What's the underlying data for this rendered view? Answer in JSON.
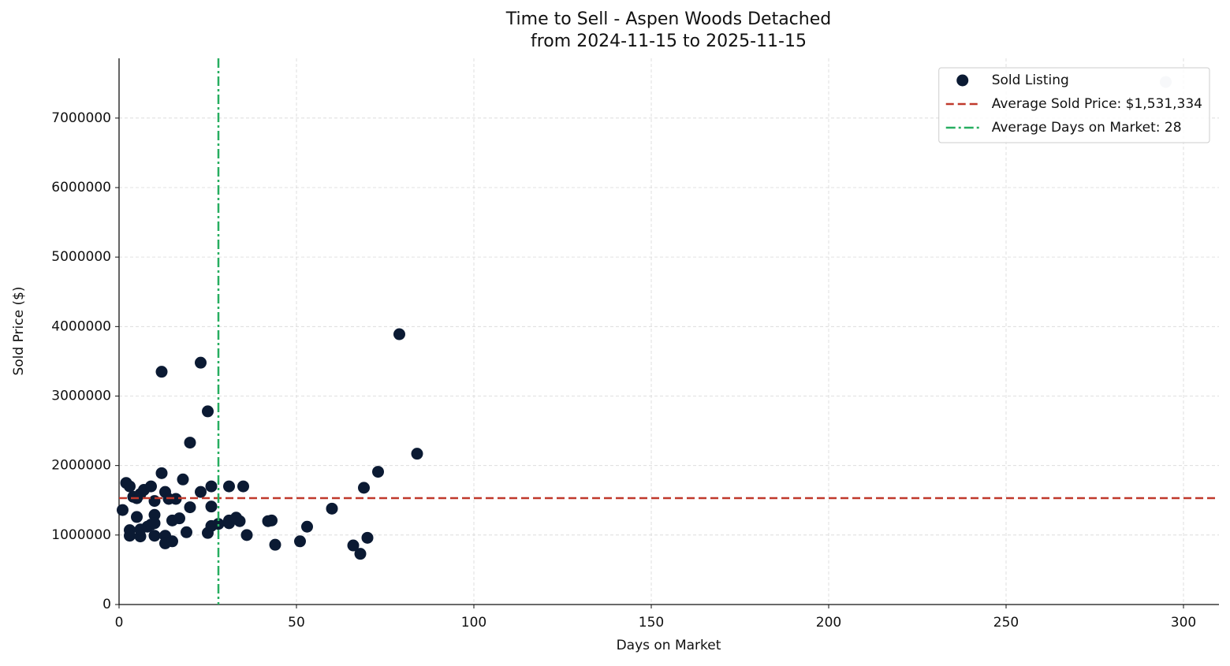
{
  "chart_data": {
    "type": "scatter",
    "title": "Time to Sell - Aspen Woods Detached",
    "subtitle": "from 2024-11-15 to 2025-11-15",
    "x_label": "Days on Market",
    "y_label": "Sold Price ($)",
    "xlim": [
      0,
      310
    ],
    "ylim": [
      0,
      7860000
    ],
    "xticks": [
      0,
      50,
      100,
      150,
      200,
      250,
      300
    ],
    "yticks": [
      0,
      1000000,
      2000000,
      3000000,
      4000000,
      5000000,
      6000000,
      7000000
    ],
    "grid": true,
    "legend": "upper right",
    "series": [
      {
        "name": "Sold Listing",
        "color": "#0b1a33",
        "x": [
          1,
          2,
          3,
          3,
          3,
          4,
          5,
          5,
          6,
          6,
          6,
          7,
          8,
          9,
          9,
          10,
          10,
          10,
          10,
          12,
          12,
          13,
          13,
          13,
          14,
          15,
          15,
          16,
          17,
          18,
          19,
          20,
          20,
          23,
          23,
          25,
          25,
          26,
          26,
          26,
          28,
          31,
          31,
          31,
          33,
          34,
          35,
          36,
          42,
          43,
          44,
          51,
          53,
          60,
          66,
          68,
          69,
          70,
          73,
          79,
          84
        ],
        "values": [
          1360000,
          1750000,
          1700000,
          1070000,
          990000,
          1550000,
          1260000,
          1530000,
          1590000,
          980000,
          1080000,
          1650000,
          1120000,
          1700000,
          1150000,
          1490000,
          1290000,
          1170000,
          990000,
          3350000,
          1890000,
          1620000,
          990000,
          880000,
          1520000,
          1210000,
          910000,
          1520000,
          1240000,
          1800000,
          1040000,
          2330000,
          1400000,
          3480000,
          1620000,
          2780000,
          1030000,
          1700000,
          1410000,
          1130000,
          1160000,
          1700000,
          1210000,
          1170000,
          1250000,
          1200000,
          1700000,
          1000000,
          1200000,
          1210000,
          860000,
          910000,
          1120000,
          1380000,
          850000,
          730000,
          1680000,
          960000,
          1910000,
          3890000,
          2170000
        ]
      },
      {
        "color": "#c9d1da",
        "x": [
          295
        ],
        "values": [
          7520000
        ]
      }
    ],
    "reference_lines": [
      {
        "orientation": "horizontal",
        "value": 1531334,
        "label": "Average Sold Price: $1,531,334",
        "color": "#c0392b",
        "style": "dashed"
      },
      {
        "orientation": "vertical",
        "value": 28,
        "label": "Average Days on Market: 28",
        "color": "#27ae60",
        "style": "dashdot"
      }
    ]
  }
}
